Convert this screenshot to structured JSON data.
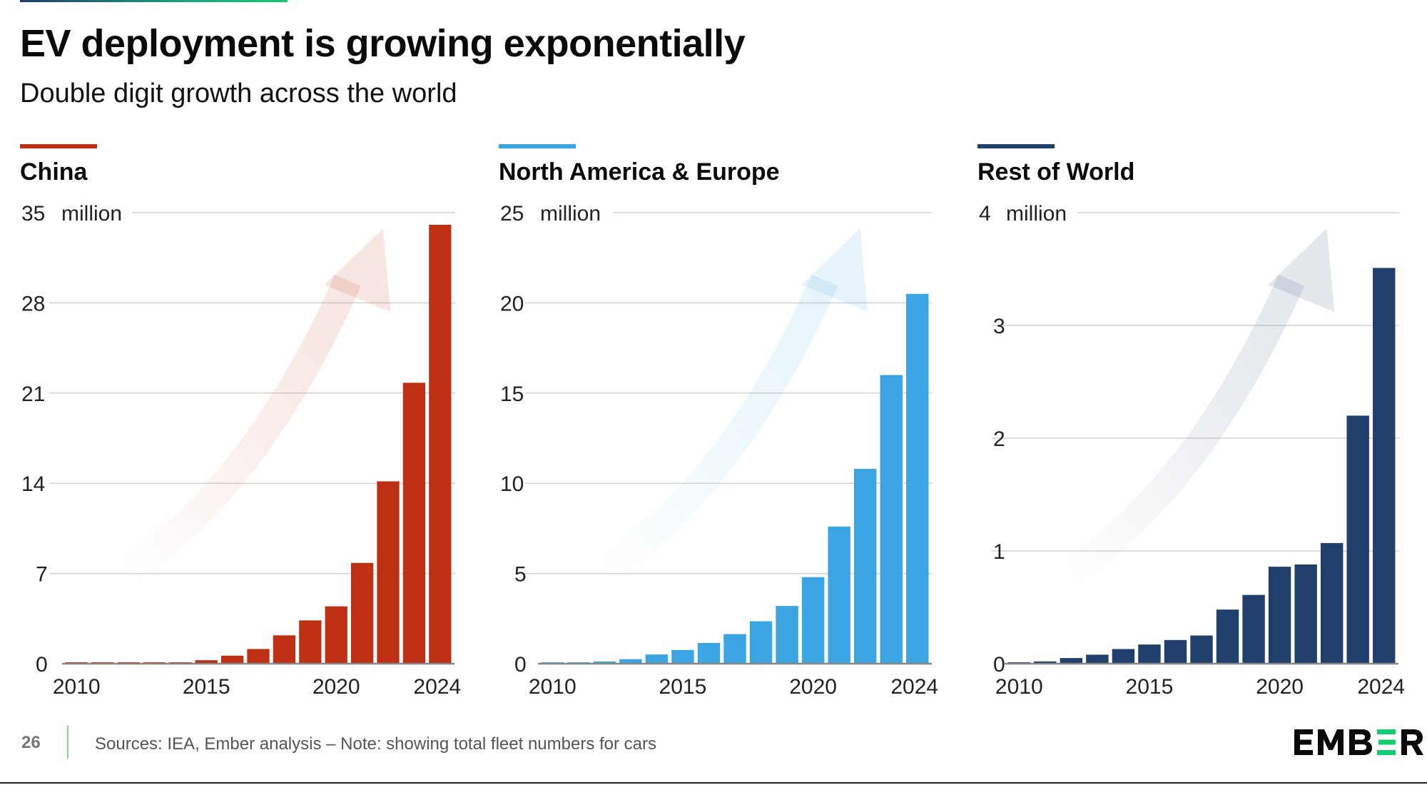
{
  "header": {
    "title": "EV deployment is growing exponentially",
    "subtitle": "Double digit growth across the world"
  },
  "footer": {
    "page_number": "26",
    "source_note": "Sources: IEA, Ember analysis – Note: showing total fleet numbers for cars",
    "logo_text": "EMBER"
  },
  "colors": {
    "china": "#bf2f14",
    "north_america_europe": "#3aa5e2",
    "rest_of_world": "#213f6d",
    "brand_green": "#14cc72",
    "gridline": "#d3d3d3",
    "axis": "#888888"
  },
  "chart_data": [
    {
      "type": "bar",
      "title": "China",
      "unit_label": "million",
      "xlabel": "",
      "ylabel": "million",
      "categories": [
        "2010",
        "2011",
        "2012",
        "2013",
        "2014",
        "2015",
        "2016",
        "2017",
        "2018",
        "2019",
        "2020",
        "2021",
        "2022",
        "2023",
        "2024"
      ],
      "values": [
        0.1,
        0.1,
        0.1,
        0.1,
        0.1,
        0.27,
        0.62,
        1.14,
        2.2,
        3.36,
        4.45,
        7.82,
        14.15,
        21.8,
        34.06
      ],
      "x_tick_labels": [
        "2010",
        "2015",
        "2020",
        "2024"
      ],
      "y_ticks": [
        0,
        7,
        14,
        21,
        28,
        35
      ],
      "ylim": [
        0,
        35
      ],
      "grid": true,
      "color_key": "china",
      "trend_arrow": true
    },
    {
      "type": "bar",
      "title": "North America & Europe",
      "unit_label": "million",
      "xlabel": "",
      "ylabel": "million",
      "categories": [
        "2010",
        "2011",
        "2012",
        "2013",
        "2014",
        "2015",
        "2016",
        "2017",
        "2018",
        "2019",
        "2020",
        "2021",
        "2022",
        "2023",
        "2024"
      ],
      "values": [
        0.05,
        0.07,
        0.12,
        0.25,
        0.51,
        0.76,
        1.15,
        1.64,
        2.35,
        3.2,
        4.8,
        7.6,
        10.8,
        16.0,
        20.5
      ],
      "x_tick_labels": [
        "2010",
        "2015",
        "2020",
        "2024"
      ],
      "y_ticks": [
        0,
        5,
        10,
        15,
        20,
        25
      ],
      "ylim": [
        0,
        25
      ],
      "grid": true,
      "color_key": "north_america_europe",
      "trend_arrow": true
    },
    {
      "type": "bar",
      "title": "Rest of World",
      "unit_label": "million",
      "xlabel": "",
      "ylabel": "million",
      "categories": [
        "2010",
        "2011",
        "2012",
        "2013",
        "2014",
        "2015",
        "2016",
        "2017",
        "2018",
        "2019",
        "2020",
        "2021",
        "2022",
        "2023",
        "2024"
      ],
      "values": [
        0.01,
        0.02,
        0.05,
        0.08,
        0.13,
        0.17,
        0.21,
        0.25,
        0.48,
        0.61,
        0.86,
        0.88,
        1.07,
        2.2,
        3.51
      ],
      "x_tick_labels": [
        "2010",
        "2015",
        "2020",
        "2024"
      ],
      "y_ticks": [
        0,
        1,
        2,
        3,
        4
      ],
      "ylim": [
        0,
        4
      ],
      "grid": true,
      "color_key": "rest_of_world",
      "trend_arrow": true
    }
  ]
}
